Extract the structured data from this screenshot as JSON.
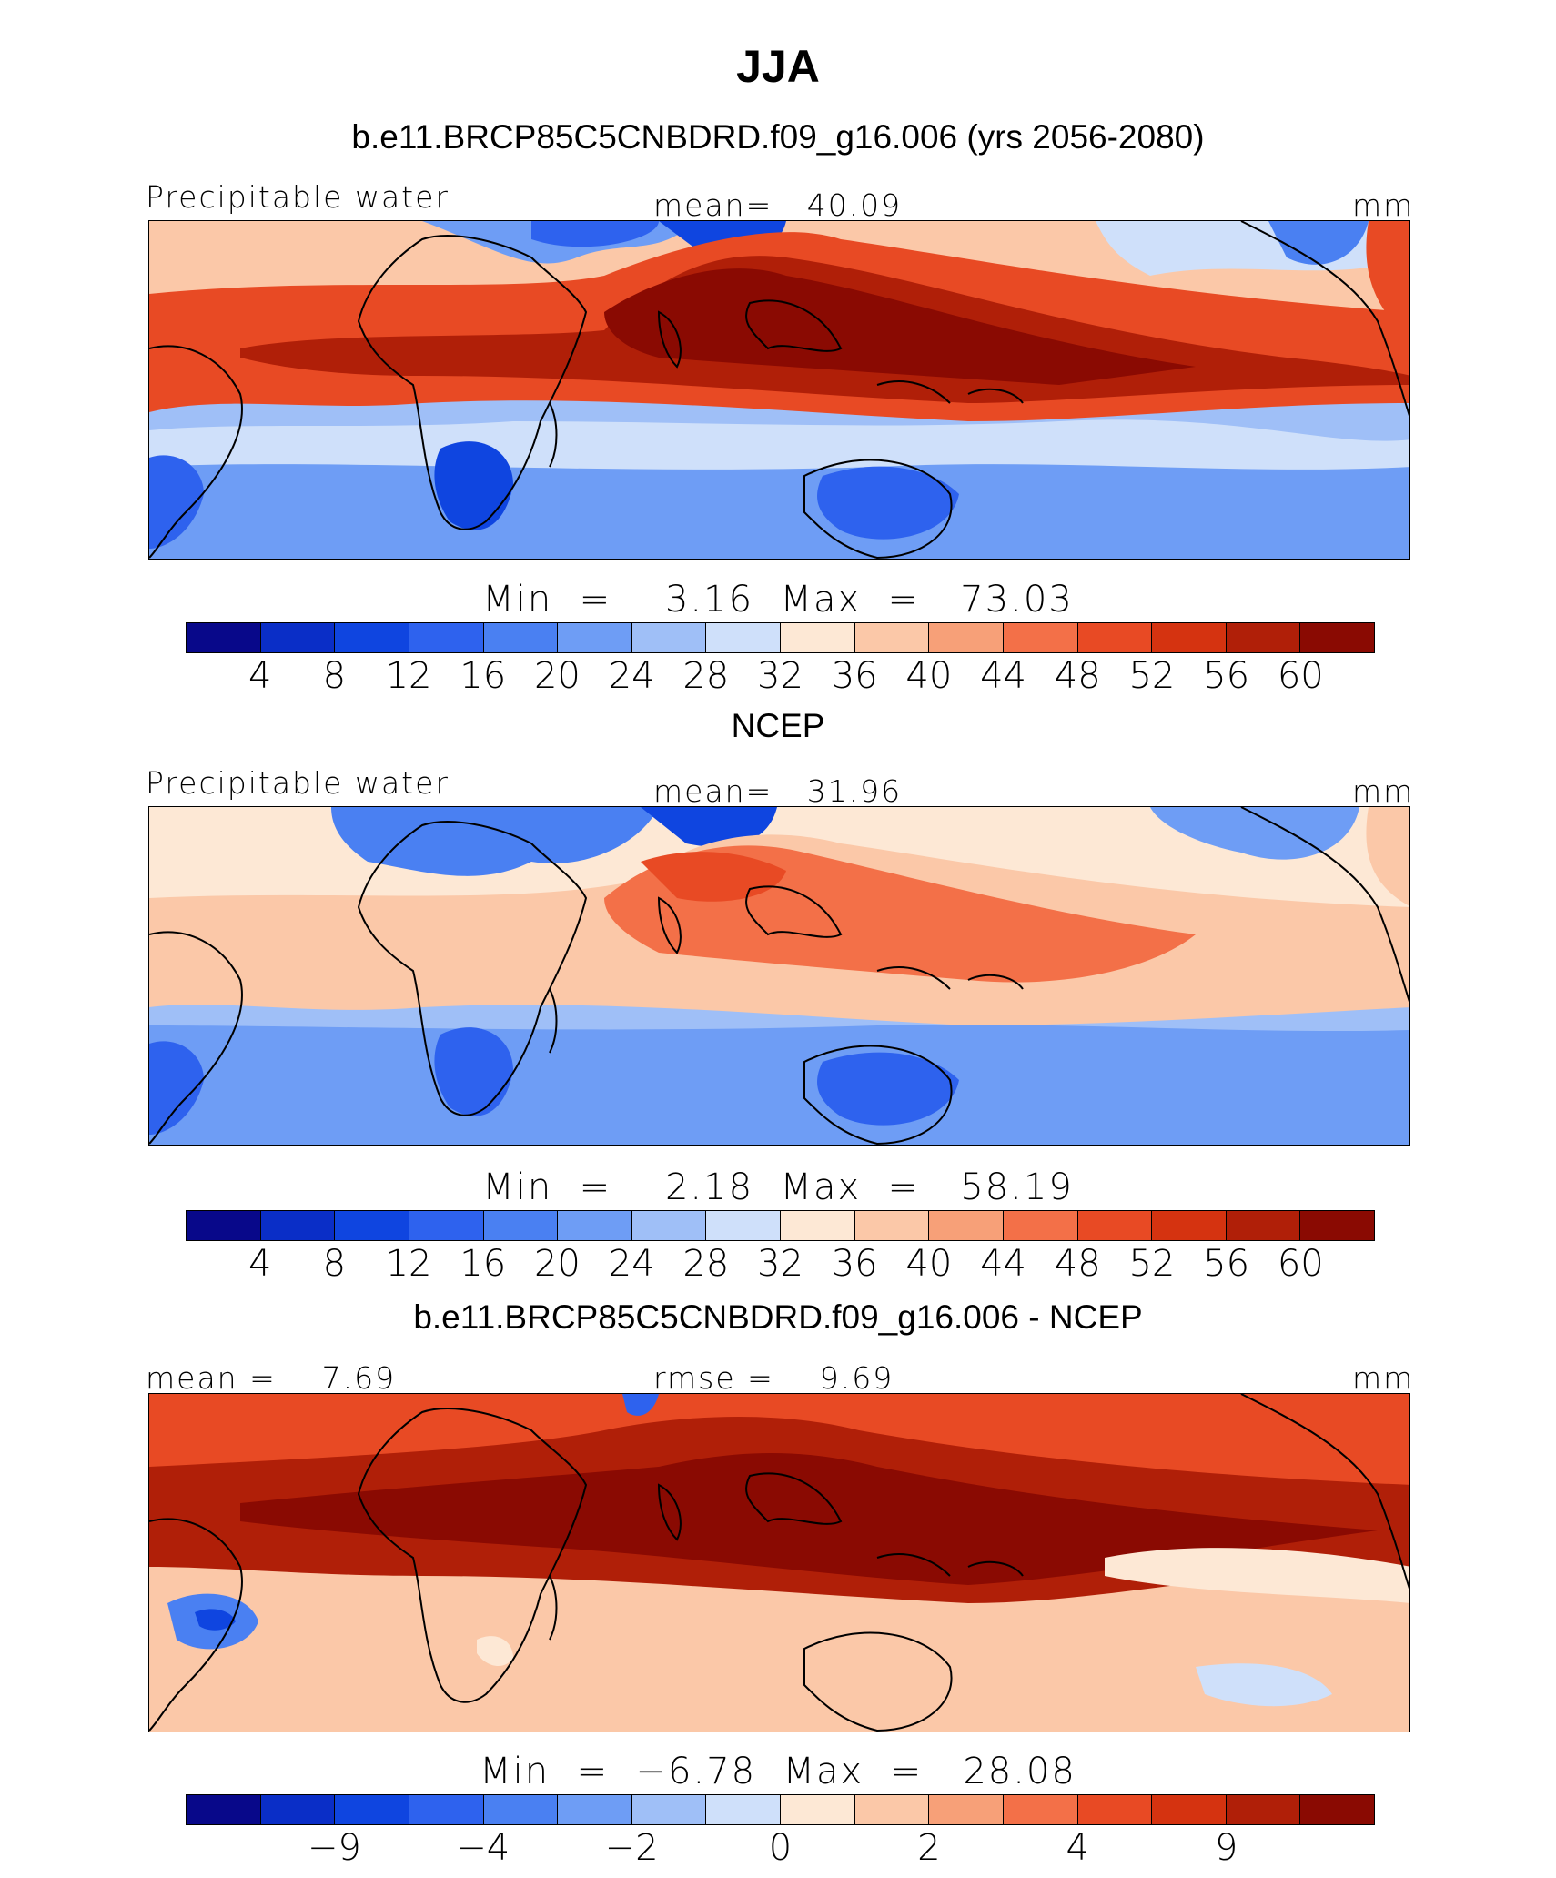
{
  "title": "JJA",
  "units": "mm",
  "colormap": [
    "#08088a",
    "#0a2ec7",
    "#0f45e0",
    "#2e62ee",
    "#4a80f2",
    "#6e9df5",
    "#9fbff7",
    "#cfe0fa",
    "#fde8d5",
    "#fbc8a8",
    "#f7a078",
    "#f37048",
    "#e84a24",
    "#d53310",
    "#b01f08",
    "#8a0a02"
  ],
  "panels": [
    {
      "id": "model",
      "subtitle": "b.e11.BRCP85C5CNBDRD.f09_g16.006 (yrs 2056-2080)",
      "left_label": "Precipitable water",
      "center_label": "mean=   40.09",
      "right_label": "mm",
      "min_label": "Min  =",
      "min_value": "3.16",
      "max_label": "Max  =",
      "max_value": "73.03",
      "minmax_text": "Min  =    3.16  Max  =   73.03",
      "ticks": [
        "4",
        "8",
        "12",
        "16",
        "20",
        "24",
        "28",
        "32",
        "36",
        "40",
        "44",
        "48",
        "52",
        "56",
        "60"
      ],
      "map_data": {
        "variable": "Precipitable water",
        "mean": 40.09,
        "min": 3.16,
        "max": 73.03,
        "levels": [
          4,
          8,
          12,
          16,
          20,
          24,
          28,
          32,
          36,
          40,
          44,
          48,
          52,
          56,
          60
        ]
      }
    },
    {
      "id": "obs",
      "subtitle": "NCEP",
      "left_label": "Precipitable water",
      "center_label": "mean=   31.96",
      "right_label": "mm",
      "minmax_text": "Min  =    2.18  Max  =   58.19",
      "ticks": [
        "4",
        "8",
        "12",
        "16",
        "20",
        "24",
        "28",
        "32",
        "36",
        "40",
        "44",
        "48",
        "52",
        "56",
        "60"
      ],
      "map_data": {
        "variable": "Precipitable water",
        "mean": 31.96,
        "min": 2.18,
        "max": 58.19,
        "levels": [
          4,
          8,
          12,
          16,
          20,
          24,
          28,
          32,
          36,
          40,
          44,
          48,
          52,
          56,
          60
        ]
      }
    },
    {
      "id": "diff",
      "subtitle": "b.e11.BRCP85C5CNBDRD.f09_g16.006 - NCEP",
      "left_label": "mean =    7.69",
      "center_label": "rmse =    9.69",
      "right_label": "mm",
      "minmax_text": "Min  =  −6.78  Max  =   28.08",
      "ticks": [
        "−9",
        "−4",
        "−2",
        "0",
        "2",
        "4",
        "9"
      ],
      "map_data": {
        "mean": 7.69,
        "rmse": 9.69,
        "min": -6.78,
        "max": 28.08,
        "labelled_levels": [
          -9,
          -4,
          -2,
          0,
          2,
          4,
          9
        ]
      }
    }
  ]
}
